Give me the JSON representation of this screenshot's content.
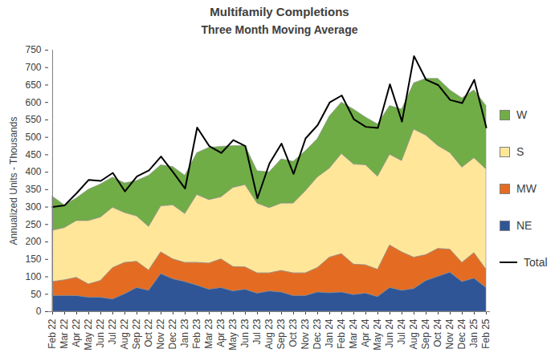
{
  "chart_data": {
    "type": "area",
    "title": "Multifamily Completions",
    "subtitle": "Three Month Moving Average",
    "y_label": "Annualized Units - Thousands",
    "stacked": true,
    "grid": false,
    "legend": "right",
    "categories": [
      "Feb 22",
      "Mar 22",
      "Apr 22",
      "May 22",
      "Jun 22",
      "Jul 22",
      "Aug 22",
      "Sep 22",
      "Oct 22",
      "Nov 22",
      "Dec 22",
      "Jan 23",
      "Feb 23",
      "Mar 23",
      "Apr 23",
      "May 23",
      "Jun 23",
      "Jul 23",
      "Aug 23",
      "Sep 23",
      "Oct 23",
      "Nov 23",
      "Dec 23",
      "Jan 24",
      "Feb 24",
      "Mar 24",
      "Apr 24",
      "May 24",
      "Jun 24",
      "Jul 24",
      "Aug 24",
      "Sep 24",
      "Oct 24",
      "Nov 24",
      "Dec 24",
      "Jan 25",
      "Feb 25"
    ],
    "ylim": [
      0,
      750
    ],
    "yticks": [
      0,
      50,
      100,
      150,
      200,
      250,
      300,
      350,
      400,
      450,
      500,
      550,
      600,
      650,
      700,
      750
    ],
    "series": [
      {
        "name": "W",
        "color": "#70ad47",
        "values": [
          98,
          65,
          65,
          90,
          95,
          87,
          85,
          102,
          147,
          118,
          110,
          110,
          120,
          150,
          145,
          120,
          112,
          93,
          103,
          127,
          120,
          115,
          110,
          150,
          148,
          158,
          137,
          150,
          140,
          148,
          133,
          163,
          193,
          180,
          199,
          195,
          182
        ]
      },
      {
        "name": "S",
        "color": "#ffe699",
        "values": [
          147,
          150,
          163,
          182,
          182,
          173,
          143,
          130,
          125,
          132,
          155,
          140,
          195,
          182,
          178,
          227,
          236,
          200,
          187,
          193,
          200,
          235,
          260,
          255,
          287,
          287,
          287,
          267,
          260,
          262,
          367,
          343,
          295,
          277,
          273,
          272,
          288
        ]
      },
      {
        "name": "MW",
        "color": "#e46c22",
        "values": [
          40,
          45,
          52,
          38,
          48,
          90,
          90,
          75,
          58,
          62,
          57,
          55,
          65,
          75,
          82,
          70,
          64,
          58,
          52,
          62,
          65,
          65,
          70,
          102,
          110,
          87,
          81,
          78,
          122,
          110,
          90,
          74,
          80,
          66,
          55,
          73,
          52
        ]
      },
      {
        "name": "NE",
        "color": "#2f5597",
        "values": [
          45,
          45,
          45,
          40,
          40,
          35,
          50,
          68,
          60,
          108,
          93,
          85,
          75,
          63,
          68,
          58,
          63,
          52,
          58,
          55,
          45,
          45,
          55,
          53,
          55,
          48,
          52,
          42,
          68,
          60,
          65,
          88,
          100,
          112,
          85,
          95,
          68
        ]
      },
      {
        "name": "Total",
        "type": "line",
        "color": "#000000",
        "values": [
          300,
          305,
          340,
          378,
          375,
          398,
          345,
          388,
          405,
          445,
          400,
          353,
          528,
          475,
          455,
          492,
          475,
          325,
          425,
          482,
          395,
          497,
          535,
          600,
          620,
          552,
          530,
          527,
          652,
          545,
          733,
          665,
          650,
          607,
          598,
          665,
          528
        ]
      }
    ]
  }
}
